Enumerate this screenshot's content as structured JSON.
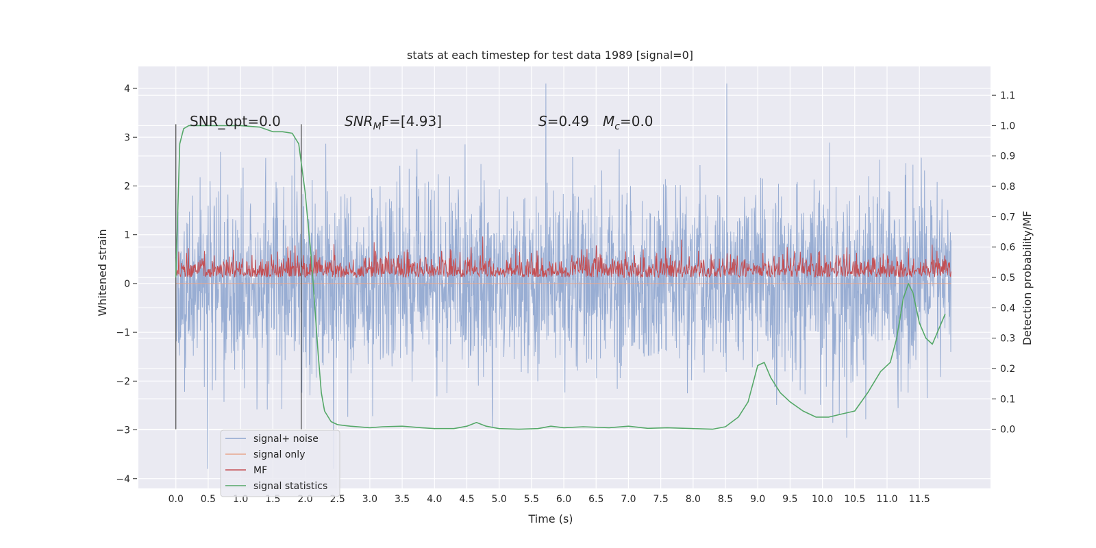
{
  "chart_data": {
    "type": "line",
    "title": "stats at each timestep for test data 1989 [signal=0]",
    "xlabel": "Time (s)",
    "ylabel": "Whitened strain",
    "y2label": "Detection probability/MF",
    "xlim": [
      -0.58,
      12.6
    ],
    "ylim": [
      -4.2,
      4.45
    ],
    "y2lim": [
      -0.195,
      1.195
    ],
    "x_ticks": [
      0.0,
      0.5,
      1.0,
      1.5,
      2.0,
      2.5,
      3.0,
      3.5,
      4.0,
      4.5,
      5.0,
      5.5,
      6.0,
      6.5,
      7.0,
      7.5,
      8.0,
      8.5,
      9.0,
      9.5,
      10.0,
      10.5,
      11.0,
      11.5
    ],
    "x_tick_labels": [
      "0.0",
      "0.5",
      "1.0",
      "1.5",
      "2.0",
      "2.5",
      "3.0",
      "3.5",
      "4.0",
      "4.5",
      "5.0",
      "5.5",
      "6.0",
      "6.5",
      "7.0",
      "7.5",
      "8.0",
      "8.5",
      "9.0",
      "9.5",
      "10.0",
      "10.5",
      "11.0",
      "11.5"
    ],
    "y_ticks": [
      -4,
      -3,
      -2,
      -1,
      0,
      1,
      2,
      3,
      4
    ],
    "y_tick_labels": [
      "−4",
      "−3",
      "−2",
      "−1",
      "0",
      "1",
      "2",
      "3",
      "4"
    ],
    "y2_ticks": [
      0.0,
      0.1,
      0.2,
      0.3,
      0.4,
      0.5,
      0.6,
      0.7,
      0.8,
      0.9,
      1.0,
      1.1
    ],
    "y2_tick_labels": [
      "0.0",
      "0.1",
      "0.2",
      "0.3",
      "0.4",
      "0.5",
      "0.6",
      "0.7",
      "0.8",
      "0.9",
      "1.0",
      "1.1"
    ],
    "grid": true,
    "legend_position": "lower-left",
    "colors": {
      "background": "#eaeaf2",
      "grid": "#ffffff",
      "signal_noise": "#8fa6cf",
      "signal_only": "#e8a68c",
      "mf": "#c44e52",
      "statistics": "#55a868",
      "marker_lines": "#444444"
    },
    "annotations": {
      "snr_opt": "SNR_opt=0.0",
      "snr_mf_prefix": "SNR",
      "snr_mf_sub": "M",
      "snr_mf_rest": "F=[4.93]",
      "s_label": "S",
      "s_value": "=0.49",
      "mc_label": "M",
      "mc_sub": "c",
      "mc_value": "=0.0"
    },
    "vertical_markers": [
      0.0,
      1.94
    ],
    "series": [
      {
        "name": "signal+ noise",
        "kind": "noise",
        "axis": "left",
        "x_range": [
          0.0,
          11.99
        ],
        "approx_envelope": [
          -2.3,
          2.5
        ],
        "approx_peaks": [
          4.1,
          3.9,
          3.5,
          -3.8,
          -3.5
        ]
      },
      {
        "name": "signal only",
        "kind": "flat",
        "axis": "left",
        "value": 0.0
      },
      {
        "name": "MF",
        "kind": "noise",
        "axis": "right",
        "x_range": [
          0.0,
          11.99
        ],
        "approx_range": [
          0.5,
          0.64
        ],
        "approx_peaks": [
          0.63,
          0.62
        ]
      },
      {
        "name": "signal statistics",
        "kind": "line",
        "axis": "right",
        "x": [
          0.0,
          0.06,
          0.12,
          0.2,
          0.35,
          0.6,
          1.0,
          1.3,
          1.5,
          1.65,
          1.8,
          1.9,
          2.0,
          2.1,
          2.15,
          2.2,
          2.25,
          2.3,
          2.4,
          2.5,
          2.7,
          3.0,
          3.2,
          3.5,
          3.8,
          4.0,
          4.3,
          4.5,
          4.65,
          4.8,
          5.0,
          5.3,
          5.6,
          5.8,
          6.0,
          6.3,
          6.7,
          7.0,
          7.3,
          7.6,
          8.0,
          8.3,
          8.5,
          8.7,
          8.85,
          9.0,
          9.1,
          9.2,
          9.35,
          9.5,
          9.7,
          9.9,
          10.1,
          10.3,
          10.5,
          10.7,
          10.9,
          11.05,
          11.15,
          11.25,
          11.33,
          11.4,
          11.5,
          11.6,
          11.7,
          11.8,
          11.9
        ],
        "y": [
          0.5,
          0.94,
          0.99,
          1.0,
          1.0,
          1.0,
          1.0,
          0.995,
          0.98,
          0.98,
          0.975,
          0.94,
          0.78,
          0.55,
          0.4,
          0.25,
          0.12,
          0.06,
          0.025,
          0.015,
          0.01,
          0.005,
          0.008,
          0.01,
          0.005,
          0.002,
          0.002,
          0.01,
          0.022,
          0.01,
          0.002,
          0.0,
          0.002,
          0.01,
          0.005,
          0.008,
          0.005,
          0.01,
          0.003,
          0.005,
          0.002,
          0.0,
          0.008,
          0.04,
          0.09,
          0.21,
          0.22,
          0.17,
          0.12,
          0.09,
          0.06,
          0.04,
          0.04,
          0.05,
          0.06,
          0.12,
          0.19,
          0.22,
          0.3,
          0.43,
          0.48,
          0.45,
          0.35,
          0.3,
          0.28,
          0.33,
          0.38
        ]
      }
    ]
  }
}
